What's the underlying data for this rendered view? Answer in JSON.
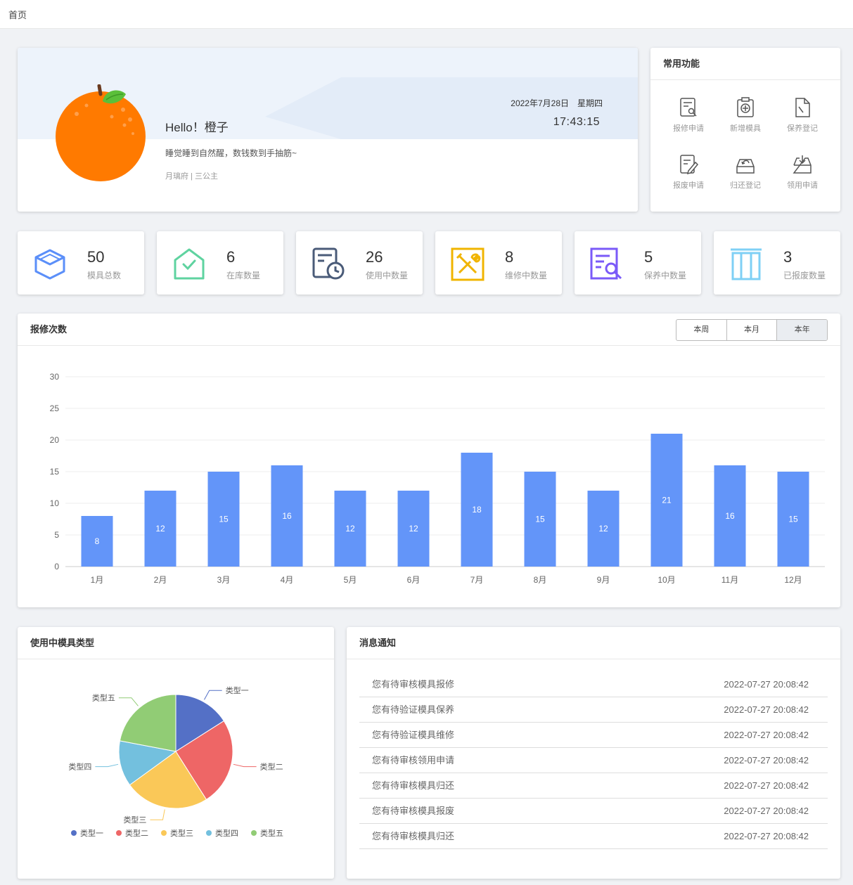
{
  "breadcrumb": "首页",
  "welcome": {
    "greeting": "Hello！橙子",
    "motto": "睡觉睡到自然醒，数钱数到手抽筋~",
    "role": "月璃府 | 三公主",
    "date": "2022年7月28日　星期四",
    "time": "17:43:15"
  },
  "quick": {
    "title": "常用功能",
    "items": [
      {
        "label": "报修申请",
        "icon": "repair-request-icon"
      },
      {
        "label": "新增模具",
        "icon": "add-mold-icon"
      },
      {
        "label": "保养登记",
        "icon": "maintenance-register-icon"
      },
      {
        "label": "报废申请",
        "icon": "scrap-request-icon"
      },
      {
        "label": "归还登记",
        "icon": "return-register-icon"
      },
      {
        "label": "领用申请",
        "icon": "receive-request-icon"
      }
    ]
  },
  "stats": [
    {
      "value": "50",
      "label": "模具总数",
      "icon": "box-icon",
      "color": "#5b8ff9"
    },
    {
      "value": "6",
      "label": "在库数量",
      "icon": "warehouse-icon",
      "color": "#5fd3a0"
    },
    {
      "value": "26",
      "label": "使用中数量",
      "icon": "clock-document-icon",
      "color": "#4a5b78"
    },
    {
      "value": "8",
      "label": "维修中数量",
      "icon": "tools-icon",
      "color": "#f0b400"
    },
    {
      "value": "5",
      "label": "保养中数量",
      "icon": "inspect-document-icon",
      "color": "#7a5af8"
    },
    {
      "value": "3",
      "label": "已报废数量",
      "icon": "scrap-bin-icon",
      "color": "#7fd0f5"
    }
  ],
  "repair": {
    "title": "报修次数",
    "tabs": [
      "本周",
      "本月",
      "本年"
    ],
    "active_tab": 2
  },
  "chart_data": [
    {
      "type": "bar",
      "title": "报修次数",
      "categories": [
        "1月",
        "2月",
        "3月",
        "4月",
        "5月",
        "6月",
        "7月",
        "8月",
        "9月",
        "10月",
        "11月",
        "12月"
      ],
      "values": [
        8,
        12,
        15,
        16,
        12,
        12,
        18,
        15,
        12,
        21,
        16,
        15
      ],
      "ylim": [
        0,
        30
      ],
      "yticks": [
        0,
        5,
        10,
        15,
        20,
        25,
        30
      ],
      "grid": true,
      "color": "#6395f9",
      "data_labels": true
    },
    {
      "type": "pie",
      "title": "使用中模具类型",
      "categories": [
        "类型一",
        "类型二",
        "类型三",
        "类型四",
        "类型五"
      ],
      "values": [
        16,
        25,
        24,
        13,
        22
      ],
      "colors": [
        "#5470c6",
        "#ee6666",
        "#fac858",
        "#73c0de",
        "#91cc75"
      ],
      "legend": "bottom"
    }
  ],
  "types": {
    "title": "使用中模具类型"
  },
  "messages": {
    "title": "消息通知",
    "items": [
      {
        "text": "您有待审核模具报修",
        "time": "2022-07-27 20:08:42"
      },
      {
        "text": "您有待验证模具保养",
        "time": "2022-07-27 20:08:42"
      },
      {
        "text": "您有待验证模具维修",
        "time": "2022-07-27 20:08:42"
      },
      {
        "text": "您有待审核领用申请",
        "time": "2022-07-27 20:08:42"
      },
      {
        "text": "您有待审核模具归还",
        "time": "2022-07-27 20:08:42"
      },
      {
        "text": "您有待审核模具报废",
        "time": "2022-07-27 20:08:42"
      },
      {
        "text": "您有待审核模具归还",
        "time": "2022-07-27 20:08:42"
      }
    ]
  }
}
